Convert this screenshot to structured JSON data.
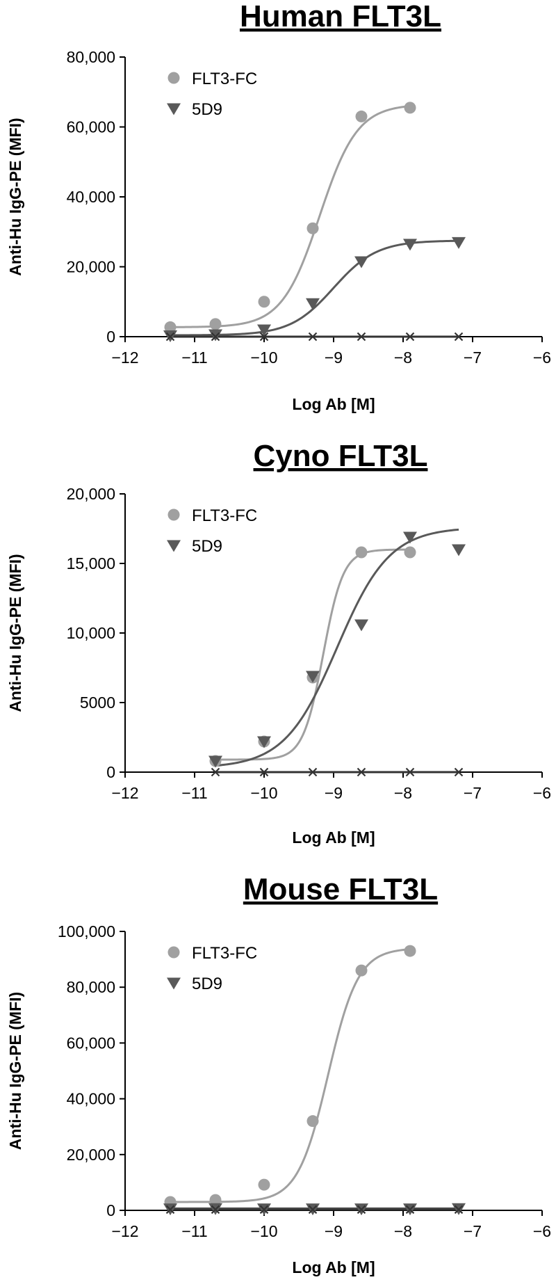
{
  "colors": {
    "flt3_fc": "#a0a0a0",
    "d5d9": "#595959",
    "control": "#333333",
    "axis": "#000000"
  },
  "chart_data": [
    {
      "type": "scatter",
      "title": "Human FLT3L",
      "xlabel": "Log Ab [M]",
      "ylabel": "Anti-Hu IgG-PE (MFI)",
      "xlim": [
        -12,
        -6
      ],
      "ylim": [
        0,
        80000
      ],
      "xticks": [
        -12,
        -11,
        -10,
        -9,
        -8,
        -7,
        -6
      ],
      "xtick_labels": [
        "−12",
        "−11",
        "−10",
        "−9",
        "−8",
        "−7",
        "−6"
      ],
      "yticks": [
        0,
        20000,
        40000,
        60000,
        80000
      ],
      "ytick_labels": [
        "0",
        "20,000",
        "40,000",
        "60,000",
        "80,000"
      ],
      "legend": {
        "position": "top-left",
        "entries": [
          "FLT3-FC",
          "5D9"
        ]
      },
      "series": [
        {
          "name": "FLT3-FC",
          "marker": "circle",
          "color": "#a0a0a0",
          "x": [
            -11.35,
            -10.7,
            -10.0,
            -9.3,
            -8.6,
            -7.9
          ],
          "y": [
            2700,
            3600,
            10000,
            31000,
            63000,
            65500
          ],
          "fit": {
            "bottom": 2700,
            "top": 66500,
            "logec50": -9.2,
            "hill": 1.6
          }
        },
        {
          "name": "5D9",
          "marker": "triangle-down",
          "color": "#595959",
          "x": [
            -11.35,
            -10.7,
            -10.0,
            -9.3,
            -8.6,
            -7.9,
            -7.2
          ],
          "y": [
            300,
            600,
            2000,
            9500,
            21500,
            26500,
            27000
          ],
          "fit": {
            "bottom": 400,
            "top": 27500,
            "logec50": -9.0,
            "hill": 1.4
          }
        },
        {
          "name": "",
          "marker": "x",
          "color": "#333333",
          "x": [
            -11.35,
            -10.7,
            -10.0,
            -9.3,
            -8.6,
            -7.9,
            -7.2
          ],
          "y": [
            0,
            0,
            0,
            0,
            0,
            0,
            0
          ],
          "fit": {
            "flat": 0,
            "x0": -11.35,
            "x1": -7.2
          }
        }
      ]
    },
    {
      "type": "scatter",
      "title": "Cyno FLT3L",
      "xlabel": "Log Ab [M]",
      "ylabel": "Anti-Hu IgG-PE (MFI)",
      "xlim": [
        -12,
        -6
      ],
      "ylim": [
        0,
        20000
      ],
      "xticks": [
        -12,
        -11,
        -10,
        -9,
        -8,
        -7,
        -6
      ],
      "xtick_labels": [
        "−12",
        "−11",
        "−10",
        "−9",
        "−8",
        "−7",
        "−6"
      ],
      "yticks": [
        0,
        5000,
        10000,
        15000,
        20000
      ],
      "ytick_labels": [
        "0",
        "5000",
        "10,000",
        "15,000",
        "20,000"
      ],
      "legend": {
        "position": "top-left",
        "entries": [
          "FLT3-FC",
          "5D9"
        ]
      },
      "series": [
        {
          "name": "FLT3-FC",
          "marker": "circle",
          "color": "#a0a0a0",
          "x": [
            -10.7,
            -10.0,
            -9.3,
            -8.6,
            -7.9
          ],
          "y": [
            800,
            2200,
            6800,
            15800,
            15800
          ],
          "fit": {
            "bottom": 900,
            "top": 16000,
            "logec50": -9.15,
            "hill": 3.0
          }
        },
        {
          "name": "5D9",
          "marker": "triangle-down",
          "color": "#595959",
          "x": [
            -10.7,
            -10.0,
            -9.3,
            -8.6,
            -7.9,
            -7.2
          ],
          "y": [
            800,
            2200,
            6900,
            10600,
            16900,
            16000
          ],
          "fit": {
            "bottom": 300,
            "top": 17600,
            "logec50": -8.95,
            "hill": 1.15
          }
        },
        {
          "name": "",
          "marker": "x",
          "color": "#333333",
          "x": [
            -10.7,
            -10.0,
            -9.3,
            -8.6,
            -7.9,
            -7.2
          ],
          "y": [
            0,
            0,
            0,
            0,
            0,
            0
          ],
          "fit": {
            "flat": 0,
            "x0": -10.7,
            "x1": -7.2
          }
        }
      ]
    },
    {
      "type": "scatter",
      "title": "Mouse FLT3L",
      "xlabel": "Log Ab [M]",
      "ylabel": "Anti-Hu IgG-PE (MFI)",
      "xlim": [
        -12,
        -6
      ],
      "ylim": [
        0,
        100000
      ],
      "xticks": [
        -12,
        -11,
        -10,
        -9,
        -8,
        -7,
        -6
      ],
      "xtick_labels": [
        "−12",
        "−11",
        "−10",
        "−9",
        "−8",
        "−7",
        "−6"
      ],
      "yticks": [
        0,
        20000,
        40000,
        60000,
        80000,
        100000
      ],
      "ytick_labels": [
        "0",
        "20,000",
        "40,000",
        "60,000",
        "80,000",
        "100,000"
      ],
      "legend": {
        "position": "top-left",
        "entries": [
          "FLT3-FC",
          "5D9"
        ]
      },
      "series": [
        {
          "name": "FLT3-FC",
          "marker": "circle",
          "color": "#a0a0a0",
          "x": [
            -11.35,
            -10.7,
            -10.0,
            -9.3,
            -8.6,
            -7.9
          ],
          "y": [
            3000,
            3700,
            9200,
            32000,
            86000,
            93000
          ],
          "fit": {
            "bottom": 3000,
            "top": 94000,
            "logec50": -9.08,
            "hill": 2.0
          }
        },
        {
          "name": "5D9",
          "marker": "triangle-down",
          "color": "#595959",
          "x": [
            -11.35,
            -10.7,
            -10.0,
            -9.3,
            -8.6,
            -7.9,
            -7.2
          ],
          "y": [
            600,
            700,
            600,
            600,
            600,
            600,
            700
          ],
          "fit": {
            "flat": 700,
            "x0": -11.35,
            "x1": -7.2
          }
        },
        {
          "name": "",
          "marker": "x",
          "color": "#333333",
          "x": [
            -11.35,
            -10.7,
            -10.0,
            -9.3,
            -8.6,
            -7.9,
            -7.2
          ],
          "y": [
            300,
            300,
            300,
            300,
            300,
            300,
            300
          ],
          "fit": {
            "flat": 300,
            "x0": -11.35,
            "x1": -7.2
          }
        }
      ]
    }
  ]
}
